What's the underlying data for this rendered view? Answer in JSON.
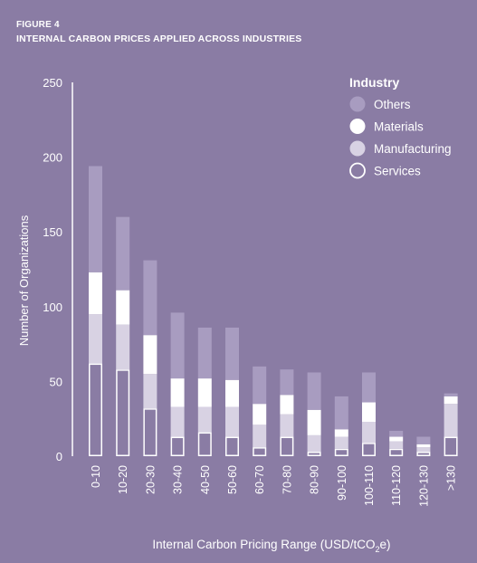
{
  "figure": {
    "label": "FIGURE 4",
    "title": "INTERNAL CARBON PRICES APPLIED ACROSS INDUSTRIES"
  },
  "colors": {
    "background": "#8a7ca4",
    "others": "#a89cc0",
    "materials": "#ffffff",
    "manufacturing": "#d8d2e3",
    "services_fill": "#8a7ca4",
    "services_outline": "#ffffff",
    "axis": "#ffffff"
  },
  "chart_data": {
    "type": "bar",
    "stacked": true,
    "ylabel": "Number of Organizations",
    "xlabel": "Internal Carbon Pricing Range (USD/tCO",
    "xlabel_sub": "2",
    "xlabel_suffix": "e)",
    "ylim": [
      0,
      250
    ],
    "yticks": [
      0,
      50,
      100,
      150,
      200,
      250
    ],
    "grid": false,
    "legend_title": "Industry",
    "legend_position": "top-right",
    "categories": [
      "0-10",
      "10-20",
      "20-30",
      "30-40",
      "40-50",
      "50-60",
      "60-70",
      "70-80",
      "80-90",
      "90-100",
      "100-110",
      "110-120",
      "120-130",
      ">130"
    ],
    "series": [
      {
        "name": "Services",
        "key": "services",
        "values": [
          62,
          58,
          32,
          13,
          16,
          13,
          6,
          13,
          3,
          5,
          9,
          5,
          3,
          13
        ]
      },
      {
        "name": "Manufacturing",
        "key": "manufacturing",
        "values": [
          33,
          30,
          23,
          20,
          17,
          20,
          15,
          15,
          11,
          8,
          14,
          5,
          3,
          22
        ]
      },
      {
        "name": "Materials",
        "key": "materials",
        "values": [
          28,
          23,
          26,
          19,
          19,
          18,
          14,
          13,
          17,
          5,
          13,
          3,
          2,
          5
        ]
      },
      {
        "name": "Others",
        "key": "others",
        "values": [
          71,
          49,
          50,
          44,
          34,
          35,
          25,
          17,
          25,
          22,
          20,
          4,
          5,
          2
        ]
      }
    ],
    "legend_order": [
      "others",
      "materials",
      "manufacturing",
      "services"
    ]
  }
}
